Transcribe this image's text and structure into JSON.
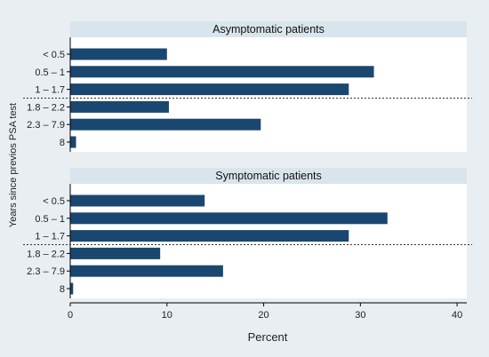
{
  "chart_data": {
    "type": "bar",
    "orientation": "horizontal",
    "xlabel": "Percent",
    "ylabel": "Years since previos PSA test",
    "xlim": [
      0,
      41
    ],
    "xticks": [
      0,
      10,
      20,
      30,
      40
    ],
    "grid": false,
    "colors": {
      "background": "#e8eef2",
      "panel": "#ffffff",
      "strip": "#d9e5ec",
      "bar": "#1a476f",
      "axis": "#000000"
    },
    "categories": [
      "< 0.5",
      "0.5 – 1",
      "1 – 1.7",
      "1.8 – 2.2",
      "2.3 – 7.9",
      "8"
    ],
    "separator_after_index": 2,
    "panels": [
      {
        "title": "Asymptomatic patients",
        "values": [
          10.0,
          31.4,
          28.8,
          10.2,
          19.7,
          0.6
        ]
      },
      {
        "title": "Symptomatic patients",
        "values": [
          13.9,
          32.8,
          28.8,
          9.3,
          15.8,
          0.3
        ]
      }
    ]
  }
}
